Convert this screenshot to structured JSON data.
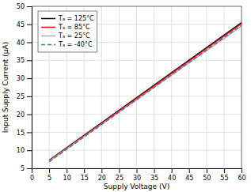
{
  "chart_data": {
    "type": "line",
    "xlabel": "Supply Voltage (V)",
    "ylabel": "Input Supply Current (μA)",
    "x": [
      5.0,
      60.0
    ],
    "series": [
      {
        "name": "Tₐ = 125°C",
        "color": "#000000",
        "values": [
          7.2,
          45.5
        ],
        "line_style": "solid"
      },
      {
        "name": "Tₐ = 85°C",
        "color": "#ff0000",
        "values": [
          7.1,
          45.2
        ],
        "line_style": "solid"
      },
      {
        "name": "Tₐ = 25°C",
        "color": "#aaaaaa",
        "values": [
          7.0,
          44.5
        ],
        "line_style": "solid"
      },
      {
        "name": "Tₐ = -40°C",
        "color": "#4477aa",
        "values": [
          6.8,
          44.8
        ],
        "line_style": "dashed"
      }
    ],
    "xlim": [
      0,
      60
    ],
    "ylim": [
      5,
      50
    ],
    "xticks": [
      0,
      5,
      10,
      15,
      20,
      25,
      30,
      35,
      40,
      45,
      50,
      55,
      60
    ],
    "yticks": [
      5,
      10,
      15,
      20,
      25,
      30,
      35,
      40,
      45,
      50
    ],
    "grid": true,
    "legend": "upper left"
  }
}
